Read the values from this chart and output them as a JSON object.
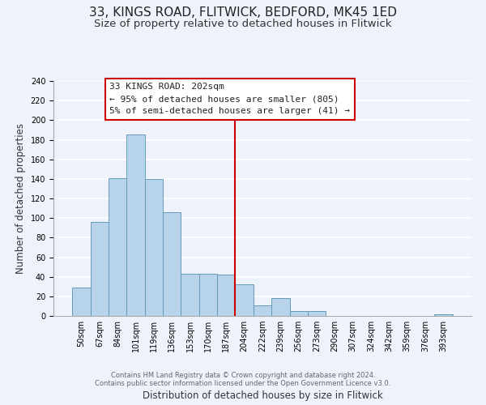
{
  "title": "33, KINGS ROAD, FLITWICK, BEDFORD, MK45 1ED",
  "subtitle": "Size of property relative to detached houses in Flitwick",
  "xlabel": "Distribution of detached houses by size in Flitwick",
  "ylabel": "Number of detached properties",
  "bar_labels": [
    "50sqm",
    "67sqm",
    "84sqm",
    "101sqm",
    "119sqm",
    "136sqm",
    "153sqm",
    "170sqm",
    "187sqm",
    "204sqm",
    "222sqm",
    "239sqm",
    "256sqm",
    "273sqm",
    "290sqm",
    "307sqm",
    "324sqm",
    "342sqm",
    "359sqm",
    "376sqm",
    "393sqm"
  ],
  "bar_values": [
    29,
    96,
    141,
    185,
    140,
    106,
    43,
    43,
    42,
    32,
    11,
    18,
    5,
    5,
    0,
    0,
    0,
    0,
    0,
    0,
    2
  ],
  "bar_color": "#b8d4ea",
  "bar_edge_color": "#6699bb",
  "vline_color": "#cc0000",
  "annotation_line1": "33 KINGS ROAD: 202sqm",
  "annotation_line2": "← 95% of detached houses are smaller (805)",
  "annotation_line3": "5% of semi-detached houses are larger (41) →",
  "ylim": [
    0,
    240
  ],
  "yticks": [
    0,
    20,
    40,
    60,
    80,
    100,
    120,
    140,
    160,
    180,
    200,
    220,
    240
  ],
  "footer_line1": "Contains HM Land Registry data © Crown copyright and database right 2024.",
  "footer_line2": "Contains public sector information licensed under the Open Government Licence v3.0.",
  "bg_color": "#eef2fb",
  "grid_color": "#ffffff",
  "title_fontsize": 11,
  "subtitle_fontsize": 9.5,
  "axis_label_fontsize": 8.5,
  "tick_fontsize": 7,
  "footer_fontsize": 6,
  "annot_fontsize": 8
}
